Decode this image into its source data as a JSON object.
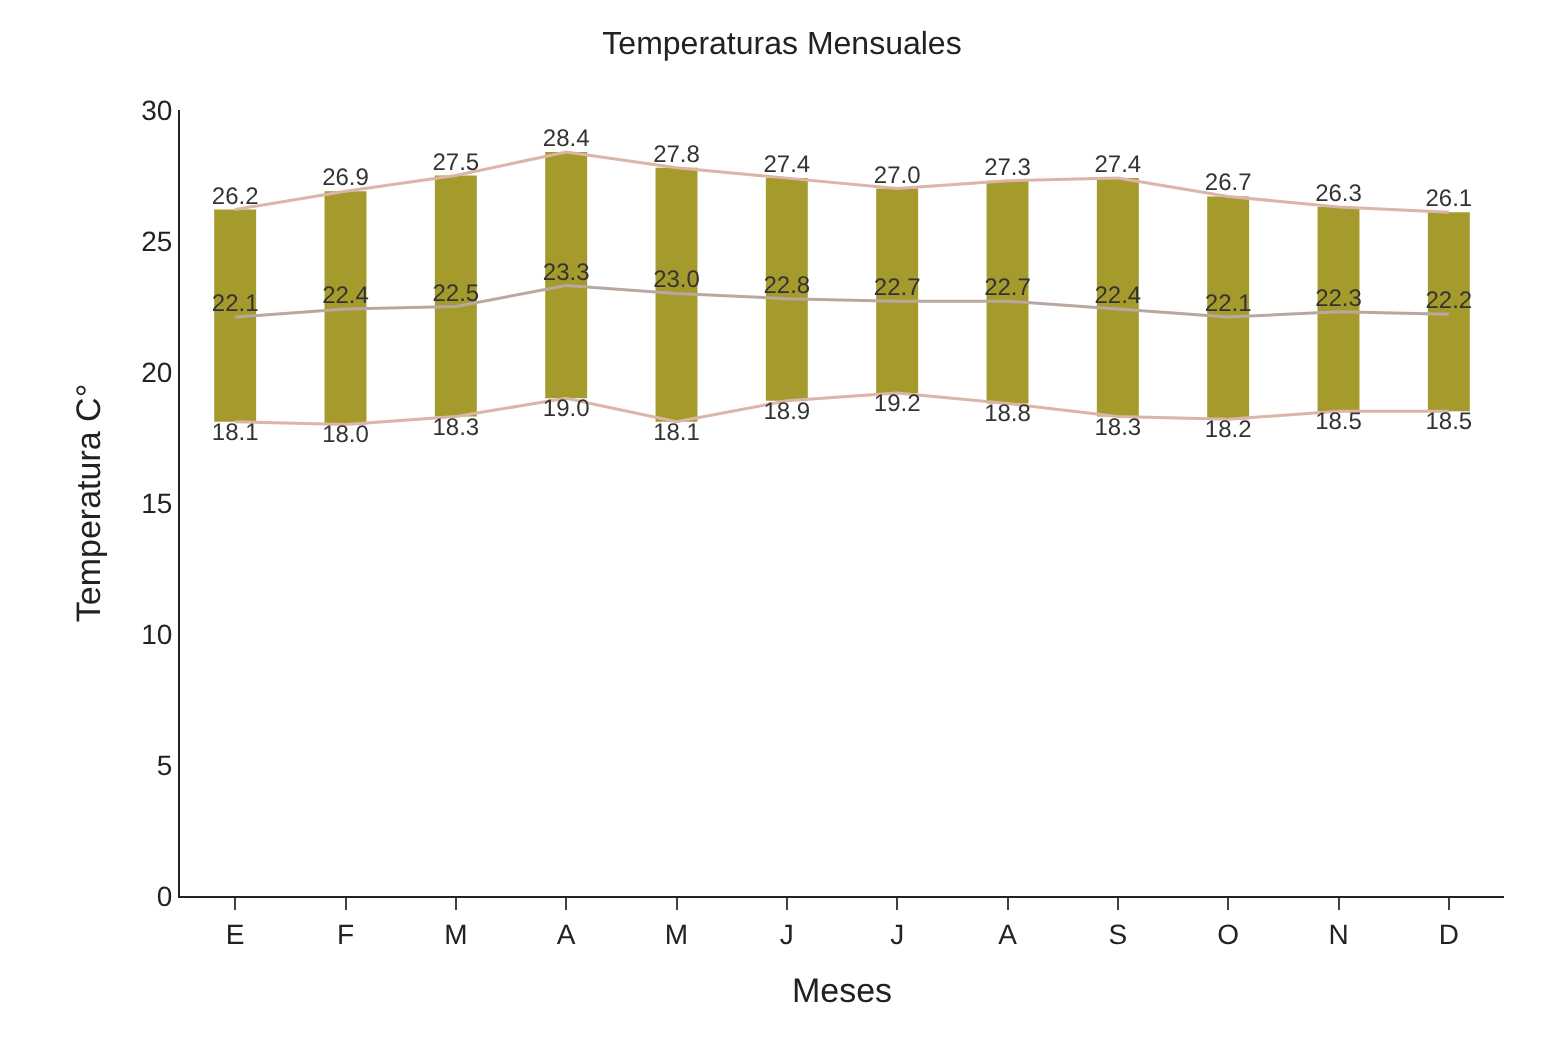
{
  "chart_data": {
    "type": "bar",
    "title": "Temperaturas Mensuales",
    "xlabel": "Meses",
    "ylabel": "Temperatura C°",
    "categories": [
      "E",
      "F",
      "M",
      "A",
      "M",
      "J",
      "J",
      "A",
      "S",
      "O",
      "N",
      "D"
    ],
    "series": [
      {
        "color": "#a59a2c",
        "base": [
          18.1,
          18.0,
          18.3,
          19.0,
          18.1,
          18.9,
          19.2,
          18.8,
          18.3,
          18.2,
          18.5,
          18.5
        ],
        "values": [
          8.1,
          8.9,
          9.2,
          9.4,
          9.7,
          8.5,
          7.8,
          8.5,
          9.1,
          8.5,
          7.8,
          7.6
        ]
      },
      {
        "type": "line",
        "color": "#dcb4a8",
        "values": [
          26.2,
          26.9,
          27.5,
          28.4,
          27.8,
          27.4,
          27.0,
          27.3,
          27.4,
          26.7,
          26.3,
          26.1
        ],
        "value_labels": [
          "26.2",
          "26.9",
          "27.5",
          "28.4",
          "27.8",
          "27.4",
          "27.0",
          "27.3",
          "27.4",
          "26.7",
          "26.3",
          "26.1"
        ]
      },
      {
        "type": "line",
        "color": "#b8a8a0",
        "values": [
          22.1,
          22.4,
          22.5,
          23.3,
          23.0,
          22.8,
          22.7,
          22.7,
          22.4,
          22.1,
          22.3,
          22.2
        ],
        "value_labels": [
          "22.1",
          "22.4",
          "22.5",
          "23.3",
          "23.0",
          "22.8",
          "22.7",
          "22.7",
          "22.4",
          "22.1",
          "22.3",
          "22.2"
        ]
      },
      {
        "type": "line",
        "color": "#dcb4a8",
        "values": [
          18.1,
          18.0,
          18.3,
          19.0,
          18.1,
          18.9,
          19.2,
          18.8,
          18.3,
          18.2,
          18.5,
          18.5
        ],
        "value_labels": [
          "18.1",
          "18.0",
          "18.3",
          "19.0",
          "18.1",
          "18.9",
          "19.2",
          "18.8",
          "18.3",
          "18.2",
          "18.5",
          "18.5"
        ]
      }
    ],
    "ylim": [
      0,
      30
    ],
    "yticks": [
      0,
      5,
      10,
      15,
      20,
      25,
      30
    ],
    "marker": "none",
    "line_style": "solid"
  }
}
